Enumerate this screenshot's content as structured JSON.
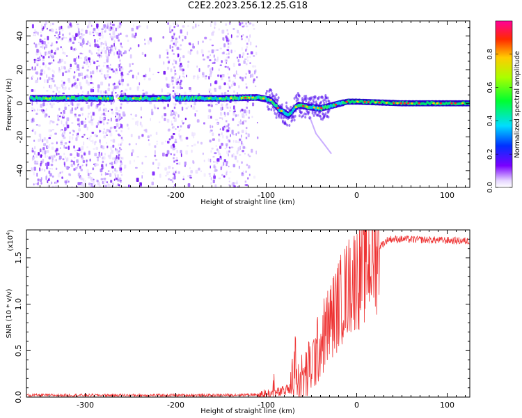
{
  "title": "C2E2.2023.256.12.25.G18",
  "colors": {
    "snr_line": "#ee3333",
    "axis": "#000000",
    "speckle": "#8833ee"
  },
  "chart_data": [
    {
      "type": "heatmap",
      "xlabel": "Height of straight line (km)",
      "ylabel": "Frequency (Hz)",
      "xlim": [
        -365,
        125
      ],
      "ylim": [
        -50,
        49
      ],
      "x_ticks": [
        "-300",
        "-200",
        "-100",
        "0",
        "100"
      ],
      "x_tick_values": [
        -300,
        -200,
        -100,
        0,
        100
      ],
      "y_ticks": [
        "-40",
        "-20",
        "0",
        "20",
        "40"
      ],
      "y_tick_values": [
        -40,
        -20,
        0,
        20,
        40
      ],
      "colorbar": {
        "label": "Normalized spectral amplitude",
        "range": [
          0,
          1
        ],
        "ticks": [
          "0.0",
          "0.2",
          "0.4",
          "0.6",
          "0.8"
        ],
        "tick_values": [
          0,
          0.2,
          0.4,
          0.6,
          0.8
        ],
        "colormap": "rainbow"
      },
      "carrier_track": [
        {
          "x": -355,
          "y": 3
        },
        {
          "x": -260,
          "y": 3
        },
        {
          "x": -150,
          "y": 3
        },
        {
          "x": -110,
          "y": 3.5
        },
        {
          "x": -95,
          "y": 2
        },
        {
          "x": -85,
          "y": -4
        },
        {
          "x": -75,
          "y": -7
        },
        {
          "x": -65,
          "y": -1
        },
        {
          "x": -55,
          "y": -2
        },
        {
          "x": -40,
          "y": -3
        },
        {
          "x": -25,
          "y": -1
        },
        {
          "x": -10,
          "y": 1
        },
        {
          "x": 0,
          "y": 1
        },
        {
          "x": 50,
          "y": 0
        },
        {
          "x": 125,
          "y": 0
        }
      ]
    },
    {
      "type": "line",
      "xlabel": "Height of straight line (km)",
      "ylabel": "SNR (10 * v/v)",
      "y_scale_label": "(x10",
      "y_scale_exponent": "4",
      "y_scale_suffix": ")",
      "xlim": [
        -365,
        125
      ],
      "ylim": [
        0,
        1.8
      ],
      "x_ticks": [
        "-300",
        "-200",
        "-100",
        "0",
        "100"
      ],
      "x_tick_values": [
        -300,
        -200,
        -100,
        0,
        100
      ],
      "y_ticks": [
        "0.0",
        "0.5",
        "1.0",
        "1.5"
      ],
      "y_tick_values": [
        0,
        0.5,
        1.0,
        1.5
      ],
      "series_profile": [
        {
          "x": -365,
          "y": 0.02
        },
        {
          "x": -150,
          "y": 0.02
        },
        {
          "x": -100,
          "y": 0.03
        },
        {
          "x": -85,
          "y": 0.05
        },
        {
          "x": -70,
          "y": 0.1
        },
        {
          "x": -55,
          "y": 0.25
        },
        {
          "x": -45,
          "y": 0.45
        },
        {
          "x": -35,
          "y": 0.7
        },
        {
          "x": -25,
          "y": 0.9
        },
        {
          "x": -15,
          "y": 1.1
        },
        {
          "x": -5,
          "y": 1.25
        },
        {
          "x": 5,
          "y": 1.35
        },
        {
          "x": 15,
          "y": 1.5
        },
        {
          "x": 25,
          "y": 1.62
        },
        {
          "x": 35,
          "y": 1.7
        },
        {
          "x": 50,
          "y": 1.7
        },
        {
          "x": 125,
          "y": 1.68
        }
      ]
    }
  ]
}
